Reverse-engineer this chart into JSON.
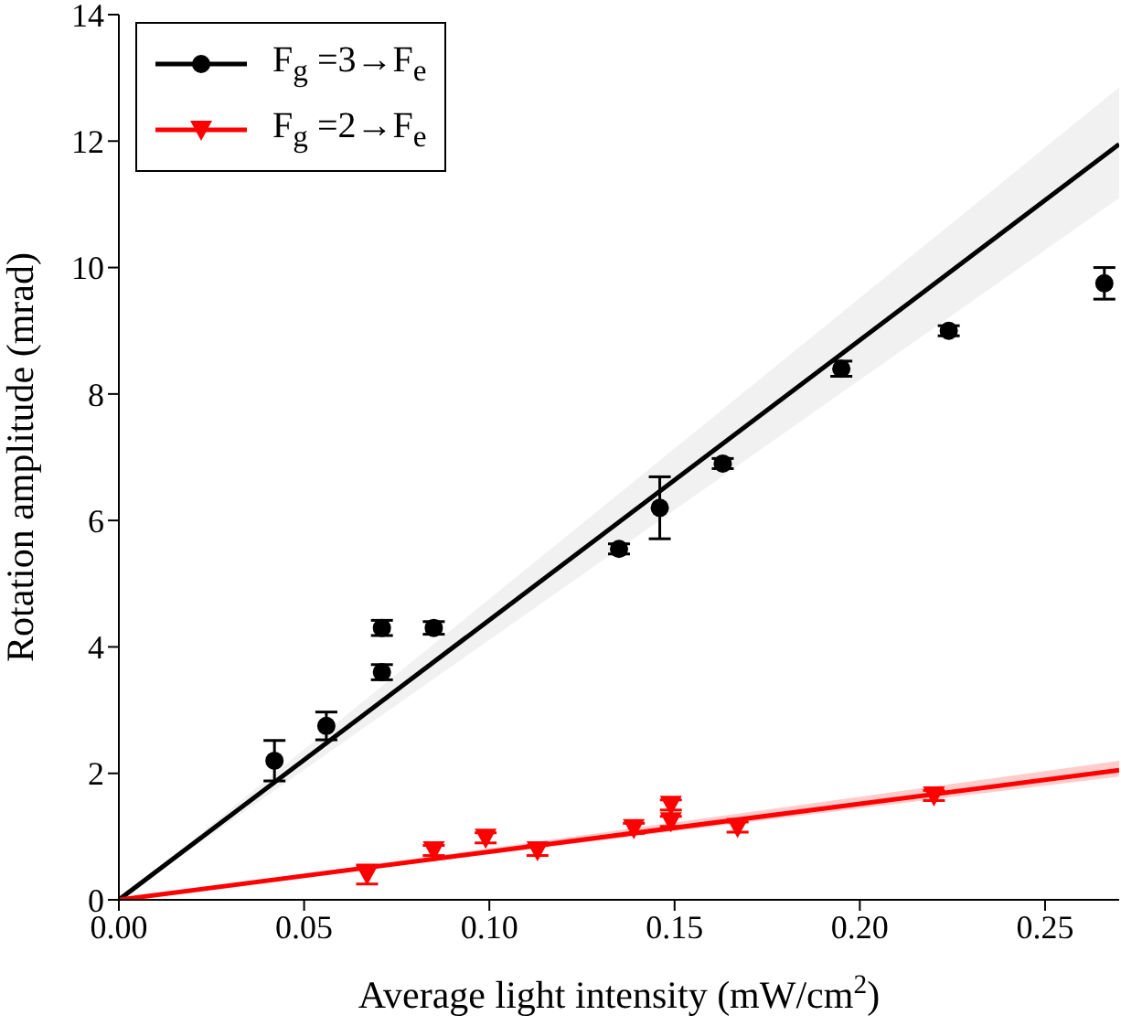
{
  "chart_data": {
    "type": "scatter",
    "xlabel": "Average light intensity (mW/cm$^{2}$)",
    "ylabel": "Rotation amplitude (mrad)",
    "xlim": [
      0,
      0.27
    ],
    "xticks": [
      {
        "value": 0,
        "label": "0.00"
      },
      {
        "value": 0.05,
        "label": "0.05"
      },
      {
        "value": 0.1,
        "label": "0.10"
      },
      {
        "value": 0.15,
        "label": "0.15"
      },
      {
        "value": 0.2,
        "label": "0.20"
      },
      {
        "value": 0.25,
        "label": "0.25"
      }
    ],
    "ylim": [
      0,
      14
    ],
    "yticks": [
      0,
      2,
      4,
      6,
      8,
      10,
      12,
      14
    ],
    "grid": false,
    "legend": "top left",
    "series": [
      {
        "type": "line",
        "color": "#000000",
        "x": [
          0,
          0.27
        ],
        "values": [
          0,
          11.95
        ],
        "lower": [
          0,
          11.1
        ],
        "upper": [
          0,
          12.85
        ],
        "marker": "none"
      },
      {
        "type": "line",
        "color": "#ff0000",
        "x": [
          0,
          0.27
        ],
        "values": [
          0,
          2.05
        ],
        "lower": [
          0,
          1.95
        ],
        "upper": [
          0,
          2.2
        ],
        "marker": "none"
      },
      {
        "name": "F$_{g}$ =3→F$_{e}$",
        "color": "#000000",
        "marker": "circle",
        "x": [
          0.042,
          0.056,
          0.071,
          0.071,
          0.085,
          0.135,
          0.146,
          0.163,
          0.195,
          0.224,
          0.266
        ],
        "values": [
          2.2,
          2.75,
          4.3,
          3.6,
          4.3,
          5.55,
          6.2,
          6.9,
          8.4,
          9.0,
          9.75
        ],
        "errors": [
          0.32,
          0.22,
          0.12,
          0.12,
          0.1,
          0.08,
          0.49,
          0.08,
          0.12,
          0.08,
          0.25
        ]
      },
      {
        "name": "F$_{g}$ =2→F$_{e}$",
        "color": "#ff0000",
        "marker": "triangle",
        "x": [
          0.067,
          0.085,
          0.099,
          0.113,
          0.139,
          0.149,
          0.149,
          0.167,
          0.22
        ],
        "values": [
          0.4,
          0.78,
          0.98,
          0.78,
          1.13,
          1.5,
          1.24,
          1.15,
          1.65
        ],
        "errors": [
          0.15,
          0.08,
          0.08,
          0.08,
          0.08,
          0.08,
          0.08,
          0.08,
          0.08
        ]
      }
    ]
  }
}
